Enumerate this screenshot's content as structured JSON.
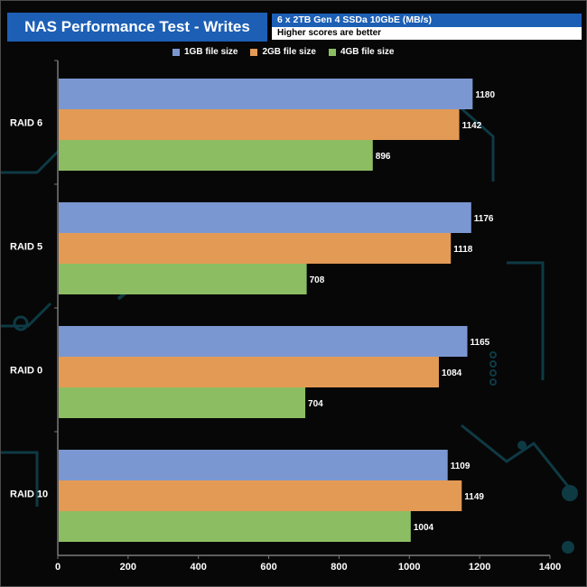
{
  "title": "NAS Performance Test  - Writes",
  "subtitle": "6 x 2TB Gen 4 SSDa 10GbE  (MB/s)",
  "note": "Higher scores are better",
  "colors": {
    "background": "#070707",
    "circuit": "#0e3a44",
    "axis": "#7a7a7a",
    "label": "#ffffff",
    "title_bg": "#1c5fb5"
  },
  "chart_data": {
    "type": "bar",
    "orientation": "horizontal",
    "categories": [
      "RAID 6",
      "RAID 5",
      "RAID 0",
      "RAID 10"
    ],
    "series": [
      {
        "name": "1GB file size",
        "color": "#7b97d2",
        "values": [
          1180,
          1176,
          1165,
          1109
        ]
      },
      {
        "name": "2GB file size",
        "color": "#e39a55",
        "values": [
          1142,
          1118,
          1084,
          1149
        ]
      },
      {
        "name": "4GB file size",
        "color": "#8cbd63",
        "values": [
          896,
          708,
          704,
          1004
        ]
      }
    ],
    "xlim": [
      0,
      1400
    ],
    "xticks": [
      "0",
      "200",
      "400",
      "600",
      "800",
      "1000",
      "1200",
      "1400"
    ],
    "legend_position": "top",
    "data_labels": true
  }
}
